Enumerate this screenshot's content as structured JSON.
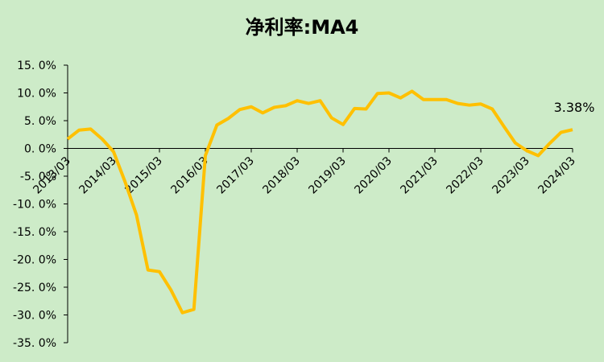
{
  "chart_data": {
    "type": "line",
    "title": "净利率:MA4",
    "categories": [
      "2013/03",
      null,
      null,
      null,
      "2014/03",
      null,
      null,
      null,
      "2015/03",
      null,
      null,
      null,
      "2016/03",
      null,
      null,
      null,
      "2017/03",
      null,
      null,
      null,
      "2018/03",
      null,
      null,
      null,
      "2019/03",
      null,
      null,
      null,
      "2020/03",
      null,
      null,
      null,
      "2021/03",
      null,
      null,
      null,
      "2022/03",
      null,
      null,
      null,
      "2023/03",
      null,
      null,
      null,
      "2024/03"
    ],
    "series": [
      {
        "name": "净利率:MA4",
        "color": "#ffc000",
        "values": [
          1.7,
          3.3,
          3.5,
          1.7,
          -0.6,
          -6,
          -12,
          -21.9,
          -22.2,
          -25.5,
          -29.6,
          -29,
          -1.3,
          4.2,
          5.4,
          7.0,
          7.5,
          6.4,
          7.4,
          7.7,
          8.6,
          8.1,
          8.6,
          5.5,
          4.3,
          7.2,
          7.1,
          9.9,
          10.0,
          9.1,
          10.3,
          8.8,
          8.8,
          8.8,
          8.1,
          7.8,
          8.0,
          7.1,
          4.0,
          1.0,
          -0.4,
          -1.3,
          0.9,
          2.9,
          3.38
        ],
        "value_labels": [
          null,
          null,
          null,
          null,
          null,
          null,
          null,
          null,
          null,
          null,
          null,
          null,
          null,
          null,
          null,
          null,
          null,
          null,
          null,
          null,
          null,
          null,
          null,
          null,
          null,
          null,
          null,
          null,
          null,
          null,
          null,
          null,
          null,
          null,
          null,
          null,
          null,
          null,
          null,
          null,
          null,
          null,
          null,
          null,
          "3.38%"
        ]
      }
    ],
    "ylim": [
      -35,
      15
    ],
    "yticks": [
      {
        "value": 15,
        "label": "15. 0%"
      },
      {
        "value": 10,
        "label": "10. 0%"
      },
      {
        "value": 5,
        "label": "5. 0%"
      },
      {
        "value": 0,
        "label": "0. 0%"
      },
      {
        "value": -5,
        "label": "-5. 0%"
      },
      {
        "value": -10,
        "label": "-10. 0%"
      },
      {
        "value": -15,
        "label": "-15. 0%"
      },
      {
        "value": -20,
        "label": "-20. 0%"
      },
      {
        "value": -25,
        "label": "-25. 0%"
      },
      {
        "value": -30,
        "label": "-30. 0%"
      },
      {
        "value": -35,
        "label": "-35. 0%"
      }
    ],
    "grid": false
  }
}
